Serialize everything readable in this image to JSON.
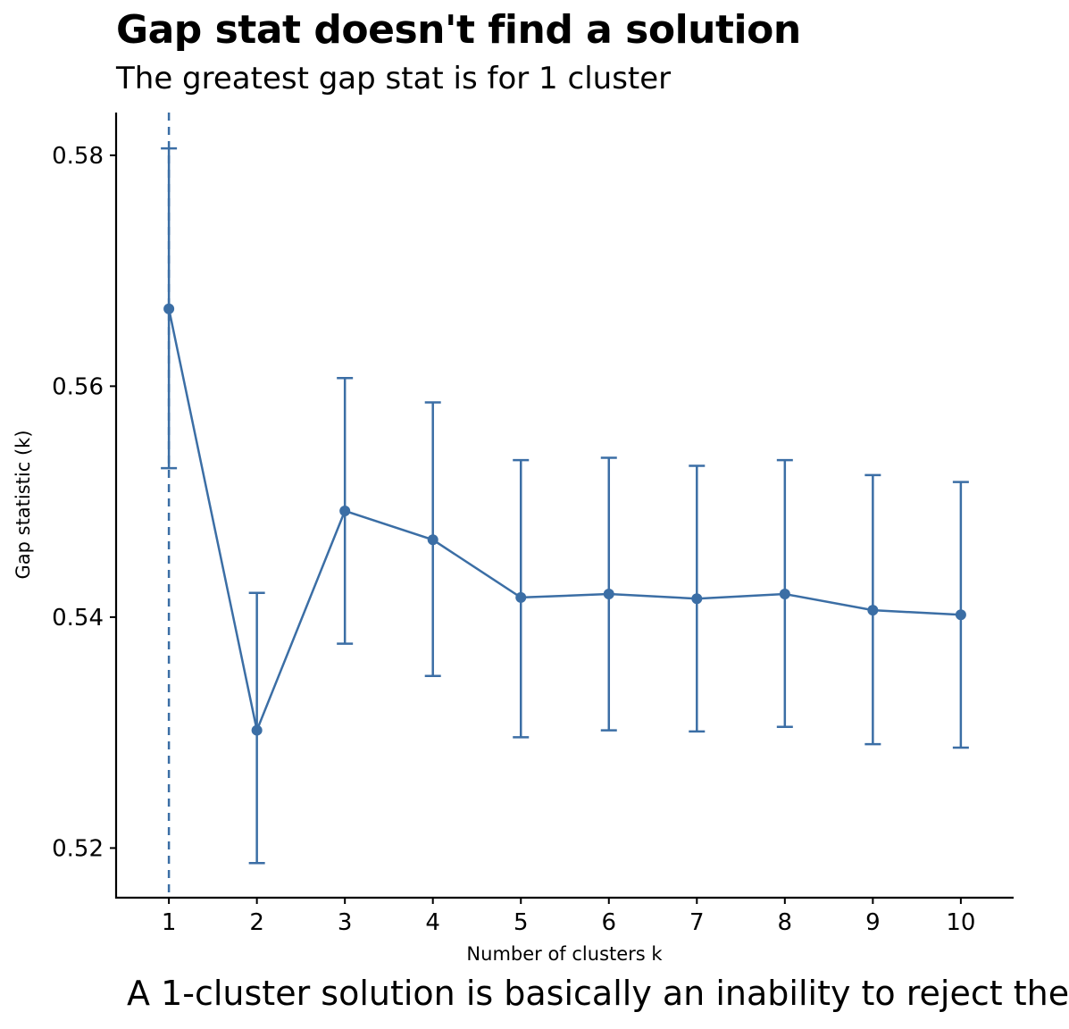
{
  "chart_data": {
    "type": "line",
    "title": "Gap stat doesn't find a solution",
    "subtitle": "The greatest gap stat is for 1 cluster",
    "caption": "A 1-cluster solution is basically an inability to reject the",
    "xlabel": "Number of clusters k",
    "ylabel": "Gap statistic (k)",
    "x": [
      1,
      2,
      3,
      4,
      5,
      6,
      7,
      8,
      9,
      10
    ],
    "x_tick_labels": [
      "1",
      "2",
      "3",
      "4",
      "5",
      "6",
      "7",
      "8",
      "9",
      "10"
    ],
    "y_ticks": [
      0.52,
      0.54,
      0.56,
      0.58
    ],
    "y_tick_labels": [
      "0.52",
      "0.54",
      "0.56",
      "0.58"
    ],
    "ylim": [
      0.5157,
      0.5837
    ],
    "xlim": [
      0.4,
      10.6
    ],
    "series": [
      {
        "values": [
          0.5667,
          0.5302,
          0.5492,
          0.5467,
          0.5417,
          0.542,
          0.5416,
          0.542,
          0.5406,
          0.5402
        ],
        "error_lower": [
          0.5529,
          0.5187,
          0.5377,
          0.5349,
          0.5296,
          0.5302,
          0.5301,
          0.5305,
          0.529,
          0.5287
        ],
        "error_upper": [
          0.5806,
          0.5421,
          0.5607,
          0.5586,
          0.5536,
          0.5538,
          0.5531,
          0.5536,
          0.5523,
          0.5517
        ]
      }
    ],
    "reference_line": {
      "x": 1,
      "style": "dashed"
    },
    "grid": false,
    "colors": {
      "series": "#3B6EA5",
      "axis": "#000000"
    }
  }
}
